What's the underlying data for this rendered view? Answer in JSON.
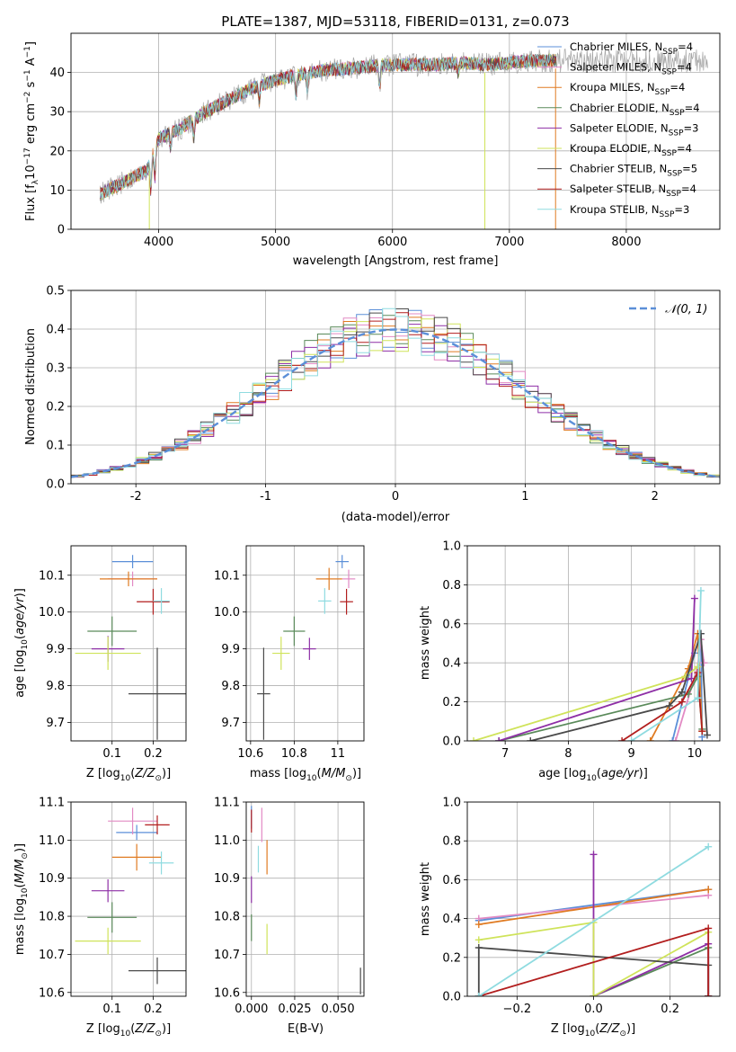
{
  "colors": {
    "Chabrier MILES": "#5b8fd8",
    "Salpeter MILES": "#e28ac4",
    "Kroupa MILES": "#e07b22",
    "Chabrier ELODIE": "#5a8a5a",
    "Salpeter ELODIE": "#8e2fa6",
    "Kroupa ELODIE": "#cfe35a",
    "Chabrier STELIB": "#4a4a4a",
    "Salpeter STELIB": "#b21e1e",
    "Kroupa STELIB": "#8fdbe0",
    "gauss": "#5b8fd8"
  },
  "chart_data": [
    {
      "id": "spectrum",
      "type": "line",
      "title": "PLATE=1387, MJD=53118, FIBERID=0131, z=0.073",
      "xlabel": "wavelength [Angstrom, rest frame]",
      "ylabel": "Flux [fλ10⁻¹⁷ erg cm⁻² s⁻¹ A⁻¹]",
      "xlim": [
        3250,
        8800
      ],
      "ylim": [
        0,
        50
      ],
      "xticks": [
        4000,
        5000,
        6000,
        7000,
        8000
      ],
      "yticks": [
        0,
        10,
        20,
        30,
        40
      ],
      "legend_position": "right",
      "legend": [
        {
          "base": "Chabrier MILES, N",
          "sub": "SSP",
          "tail": "=4"
        },
        {
          "base": "Salpeter MILES, N",
          "sub": "SSP",
          "tail": "=4"
        },
        {
          "base": "Kroupa MILES, N",
          "sub": "SSP",
          "tail": "=4"
        },
        {
          "base": "Chabrier ELODIE, N",
          "sub": "SSP",
          "tail": "=4"
        },
        {
          "base": "Salpeter ELODIE, N",
          "sub": "SSP",
          "tail": "=3"
        },
        {
          "base": "Kroupa ELODIE, N",
          "sub": "SSP",
          "tail": "=4"
        },
        {
          "base": "Chabrier STELIB, N",
          "sub": "SSP",
          "tail": "=5"
        },
        {
          "base": "Salpeter STELIB, N",
          "sub": "SSP",
          "tail": "=4"
        },
        {
          "base": "Kroupa STELIB, N",
          "sub": "SSP",
          "tail": "=3"
        }
      ],
      "continuum": {
        "x": [
          3500,
          3700,
          3900,
          3950,
          4000,
          4200,
          4400,
          4600,
          4800,
          5000,
          5200,
          5400,
          5600,
          5800,
          6000,
          6200,
          6400,
          6600,
          6800,
          7000,
          7200,
          7400
        ],
        "y": [
          9,
          12,
          15,
          19,
          23,
          26,
          30,
          33,
          36,
          38,
          39.5,
          40.5,
          41,
          41.5,
          42,
          42,
          42,
          42.5,
          42,
          42.5,
          43,
          43
        ]
      },
      "series_end": [
        7400,
        7350,
        7400,
        7400,
        7400,
        7400,
        7400,
        7400,
        7350
      ]
    },
    {
      "id": "residuals",
      "type": "histogram",
      "xlabel": "(data-model)/error",
      "ylabel": "Normed distribution",
      "xlim": [
        -2.5,
        2.5
      ],
      "ylim": [
        0,
        0.5
      ],
      "xticks": [
        -2,
        -1,
        0,
        1,
        2
      ],
      "yticks": [
        0.0,
        0.1,
        0.2,
        0.3,
        0.4,
        0.5
      ],
      "bin_width": 0.1,
      "grid": true,
      "legend": "𝒩(0, 1)",
      "legend_position": "top-right"
    },
    {
      "id": "age_vs_Z",
      "type": "errorbar",
      "xlabel": "Z [log10(Z/Z⊙)]",
      "ylabel": "age [log10(age/yr)]",
      "xlim": [
        0.0,
        0.28
      ],
      "ylim": [
        9.65,
        10.18
      ],
      "xticks": [
        0.1,
        0.2
      ],
      "yticks": [
        9.7,
        9.8,
        9.9,
        10.0,
        10.1
      ],
      "points": [
        {
          "x": 0.15,
          "y": 10.137,
          "xerr": 0.05,
          "yerr": 0.018
        },
        {
          "x": 0.15,
          "y": 10.09,
          "xerr": 0.06,
          "yerr": 0.02
        },
        {
          "x": 0.14,
          "y": 10.09,
          "xerr": 0.07,
          "yerr": 0.02
        },
        {
          "x": 0.1,
          "y": 9.948,
          "xerr": 0.06,
          "yerr": 0.04
        },
        {
          "x": 0.09,
          "y": 9.9,
          "xerr": 0.04,
          "yerr": 0.035
        },
        {
          "x": 0.09,
          "y": 9.888,
          "xerr": 0.08,
          "yerr": 0.045
        },
        {
          "x": 0.21,
          "y": 9.778,
          "xerr": 0.07,
          "yerr": 0.125
        },
        {
          "x": 0.2,
          "y": 10.028,
          "xerr": 0.04,
          "yerr": 0.035
        },
        {
          "x": 0.22,
          "y": 10.03,
          "xerr": 0.02,
          "yerr": 0.035
        }
      ]
    },
    {
      "id": "age_vs_mass",
      "type": "errorbar",
      "xlabel": "mass [log10(M/M⊙)]",
      "ylabel": "",
      "xlim": [
        10.58,
        11.12
      ],
      "ylim": [
        9.65,
        10.18
      ],
      "xticks": [
        10.6,
        10.8,
        11.0
      ],
      "yticks": [
        9.7,
        9.8,
        9.9,
        10.0,
        10.1
      ],
      "points": [
        {
          "x": 11.02,
          "y": 10.137,
          "xerr": 0.03,
          "yerr": 0.018
        },
        {
          "x": 11.05,
          "y": 10.09,
          "xerr": 0.03,
          "yerr": 0.025
        },
        {
          "x": 10.96,
          "y": 10.09,
          "xerr": 0.06,
          "yerr": 0.03
        },
        {
          "x": 10.8,
          "y": 9.948,
          "xerr": 0.05,
          "yerr": 0.04
        },
        {
          "x": 10.87,
          "y": 9.9,
          "xerr": 0.03,
          "yerr": 0.03
        },
        {
          "x": 10.74,
          "y": 9.888,
          "xerr": 0.04,
          "yerr": 0.045
        },
        {
          "x": 10.66,
          "y": 9.778,
          "xerr": 0.03,
          "yerr": 0.125
        },
        {
          "x": 11.04,
          "y": 10.028,
          "xerr": 0.03,
          "yerr": 0.035
        },
        {
          "x": 10.94,
          "y": 10.03,
          "xerr": 0.03,
          "yerr": 0.035
        }
      ]
    },
    {
      "id": "weight_vs_age",
      "type": "line",
      "xlabel": "age  [log10(age/yr)]",
      "ylabel": "mass weight",
      "xlim": [
        6.4,
        10.4
      ],
      "ylim": [
        0,
        1
      ],
      "xticks": [
        7,
        8,
        9,
        10
      ],
      "yticks": [
        0.0,
        0.2,
        0.4,
        0.6,
        0.8,
        1.0
      ],
      "grid": true,
      "series": [
        {
          "x": [
            9.65,
            10.0,
            10.1,
            10.12
          ],
          "y": [
            0.0,
            0.45,
            0.55,
            0.02
          ]
        },
        {
          "x": [
            9.7,
            10.05,
            10.1,
            10.15
          ],
          "y": [
            0.0,
            0.38,
            0.52,
            0.4
          ]
        },
        {
          "x": [
            9.3,
            9.9,
            10.05,
            10.12
          ],
          "y": [
            0.0,
            0.37,
            0.55,
            0.05
          ]
        },
        {
          "x": [
            6.9,
            9.9,
            10.05,
            10.12
          ],
          "y": [
            0.0,
            0.24,
            0.33,
            0.06
          ]
        },
        {
          "x": [
            6.9,
            9.95,
            10.0
          ],
          "y": [
            0.0,
            0.32,
            0.73
          ]
        },
        {
          "x": [
            6.5,
            9.85,
            10.05,
            10.12
          ],
          "y": [
            0.0,
            0.33,
            0.38,
            0.05
          ]
        },
        {
          "x": [
            7.4,
            9.6,
            9.8,
            10.1,
            10.2
          ],
          "y": [
            0.0,
            0.18,
            0.25,
            0.55,
            0.03
          ]
        },
        {
          "x": [
            8.85,
            9.8,
            10.05,
            10.12
          ],
          "y": [
            0.0,
            0.2,
            0.35,
            0.05
          ]
        },
        {
          "x": [
            9.0,
            10.05,
            10.1
          ],
          "y": [
            0.0,
            0.22,
            0.77
          ]
        }
      ]
    },
    {
      "id": "mass_vs_Z",
      "type": "errorbar",
      "xlabel": "Z [log10(Z/Z⊙)]",
      "ylabel": "mass [log10(M/M⊙)]",
      "xlim": [
        0.0,
        0.28
      ],
      "ylim": [
        10.59,
        11.1
      ],
      "xticks": [
        0.1,
        0.2
      ],
      "yticks": [
        10.6,
        10.7,
        10.8,
        10.9,
        11.0,
        11.1
      ],
      "points": [
        {
          "x": 0.16,
          "y": 11.02,
          "xerr": 0.05,
          "yerr": 0.02
        },
        {
          "x": 0.15,
          "y": 11.05,
          "xerr": 0.06,
          "yerr": 0.035
        },
        {
          "x": 0.16,
          "y": 10.955,
          "xerr": 0.06,
          "yerr": 0.035
        },
        {
          "x": 0.1,
          "y": 10.797,
          "xerr": 0.06,
          "yerr": 0.04
        },
        {
          "x": 0.09,
          "y": 10.867,
          "xerr": 0.04,
          "yerr": 0.03
        },
        {
          "x": 0.09,
          "y": 10.735,
          "xerr": 0.08,
          "yerr": 0.035
        },
        {
          "x": 0.21,
          "y": 10.657,
          "xerr": 0.07,
          "yerr": 0.035
        },
        {
          "x": 0.21,
          "y": 11.04,
          "xerr": 0.03,
          "yerr": 0.025
        },
        {
          "x": 0.22,
          "y": 10.94,
          "xerr": 0.03,
          "yerr": 0.03
        }
      ]
    },
    {
      "id": "mass_vs_ebv",
      "type": "errorbar",
      "xlabel": "E(B-V)",
      "ylabel": "",
      "xlim": [
        -0.003,
        0.065
      ],
      "ylim": [
        10.59,
        11.1
      ],
      "xticks": [
        0.0,
        0.025,
        0.05
      ],
      "xtick_labels": [
        "0.000",
        "0.025",
        "0.050"
      ],
      "yticks": [
        10.6,
        10.7,
        10.8,
        10.9,
        11.0,
        11.1
      ],
      "points": [
        {
          "x": 0.0,
          "y": 11.06,
          "xerr": 0,
          "yerr": 0.03
        },
        {
          "x": 0.006,
          "y": 11.04,
          "xerr": 0,
          "yerr": 0.045
        },
        {
          "x": 0.009,
          "y": 10.955,
          "xerr": 0,
          "yerr": 0.045
        },
        {
          "x": 0.0,
          "y": 10.77,
          "xerr": 0,
          "yerr": 0.035
        },
        {
          "x": 0.0,
          "y": 10.87,
          "xerr": 0,
          "yerr": 0.035
        },
        {
          "x": 0.009,
          "y": 10.74,
          "xerr": 0,
          "yerr": 0.04
        },
        {
          "x": 0.063,
          "y": 10.63,
          "xerr": 0,
          "yerr": 0.035
        },
        {
          "x": 0.0,
          "y": 11.05,
          "xerr": 0,
          "yerr": 0.03
        },
        {
          "x": 0.004,
          "y": 10.95,
          "xerr": 0,
          "yerr": 0.035
        }
      ]
    },
    {
      "id": "weight_vs_Z",
      "type": "line",
      "xlabel": "Z [log10(Z/Z⊙)]",
      "ylabel": "mass weight",
      "xlim": [
        -0.33,
        0.33
      ],
      "ylim": [
        0,
        1
      ],
      "xticks": [
        -0.2,
        0.0,
        0.2
      ],
      "xtick_labels": [
        "−0.2",
        "0.0",
        "0.2"
      ],
      "yticks": [
        0.0,
        0.2,
        0.4,
        0.6,
        0.8,
        1.0
      ],
      "grid": true,
      "series": [
        {
          "x": [
            -0.3,
            0.3
          ],
          "y": [
            0.39,
            0.55
          ]
        },
        {
          "x": [
            -0.3,
            0.3
          ],
          "y": [
            0.4,
            0.52
          ]
        },
        {
          "x": [
            -0.3,
            0.3
          ],
          "y": [
            0.37,
            0.55
          ]
        },
        {
          "x": [
            0.0,
            0.3,
            0.3
          ],
          "y": [
            0.0,
            0.25,
            0.0
          ]
        },
        {
          "x": [
            0.0,
            0.0,
            0.3,
            0.3
          ],
          "y": [
            0.73,
            0.0,
            0.27,
            0.0
          ]
        },
        {
          "x": [
            -0.3,
            0.0,
            0.0,
            0.3
          ],
          "y": [
            0.29,
            0.38,
            0.0,
            0.33
          ]
        },
        {
          "x": [
            -0.3,
            -0.3,
            0.3,
            0.3
          ],
          "y": [
            0.0,
            0.25,
            0.16,
            0.0
          ]
        },
        {
          "x": [
            -0.3,
            0.3,
            0.3
          ],
          "y": [
            0.0,
            0.35,
            0.0
          ]
        },
        {
          "x": [
            -0.3,
            -0.3,
            0.3
          ],
          "y": [
            0.0,
            0.0,
            0.77
          ]
        }
      ]
    }
  ]
}
